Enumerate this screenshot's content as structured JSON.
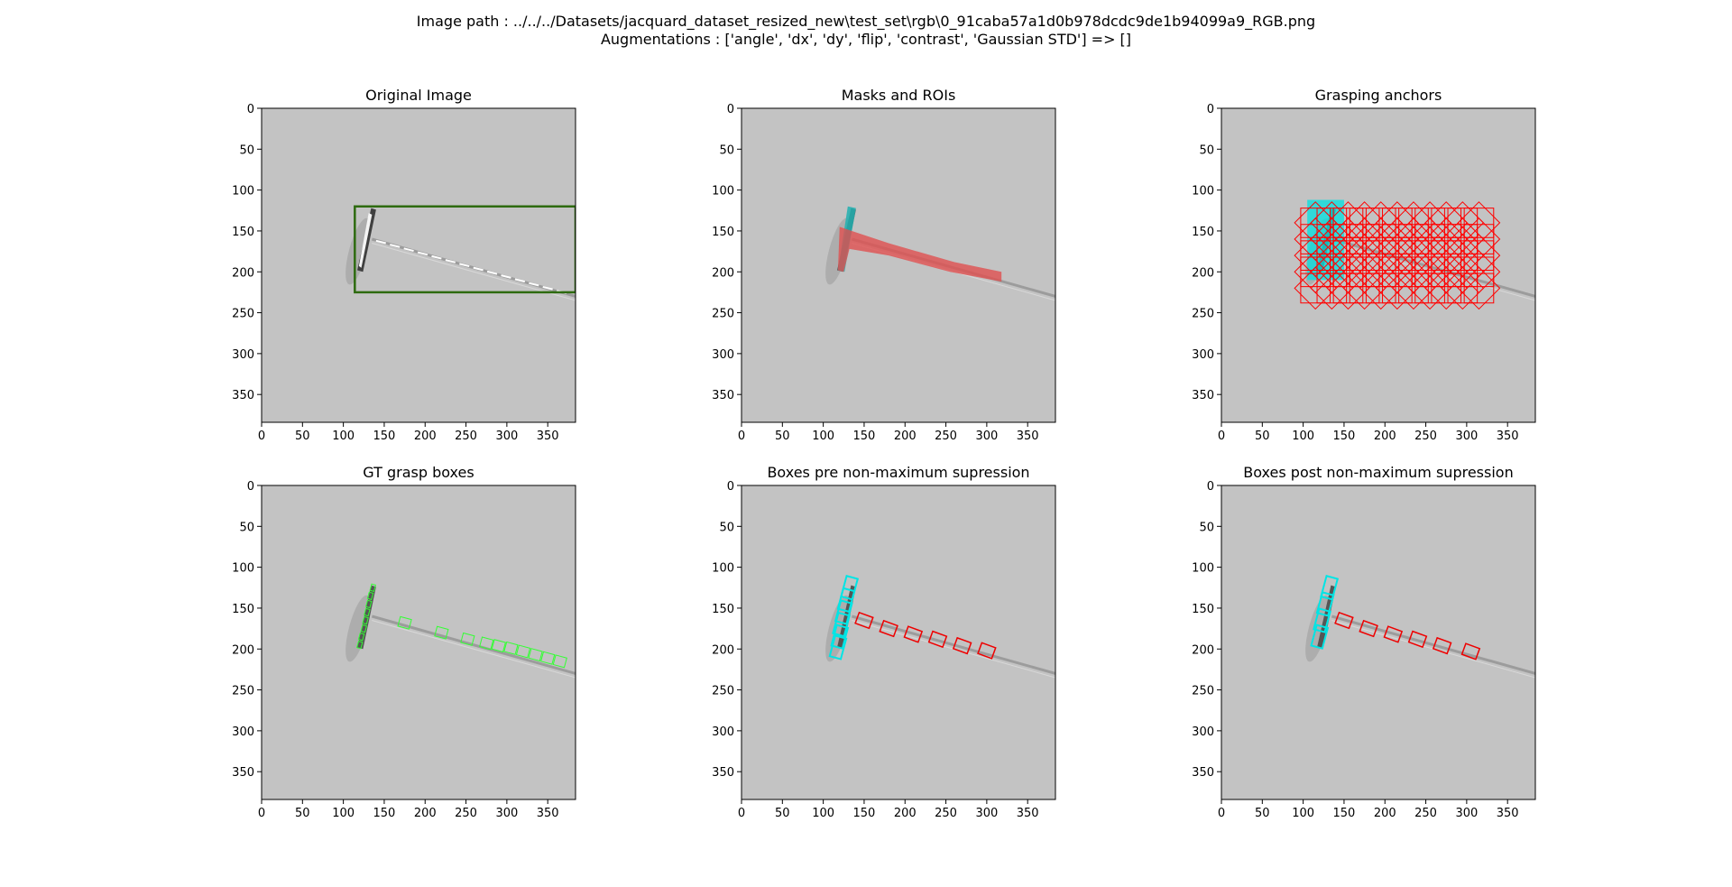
{
  "header": {
    "image_path_line": "Image path : ../../../Datasets/jacquard_dataset_resized_new\\test_set\\rgb\\0_91caba57a1d0b978dcdc9de1b94099a9_RGB.png",
    "augmentations_line": "Augmentations : ['angle', 'dx', 'dy', 'flip', 'contrast', 'Gaussian STD'] => []"
  },
  "colors": {
    "background_gray": "#c3c3c3",
    "roi_box": "#2e6b10",
    "mask_red": "#e05050",
    "mask_cyan": "#20b0b0",
    "anchor_red": "#ff0000",
    "anchor_cyan": "#00e0e0",
    "gt_green": "#33ff33",
    "pred_cyan": "#00e5e5",
    "pred_red": "#ee0000"
  },
  "axes": {
    "xlim": [
      0,
      384
    ],
    "ylim": [
      384,
      0
    ],
    "xticks": [
      0,
      50,
      100,
      150,
      200,
      250,
      300,
      350
    ],
    "yticks": [
      0,
      50,
      100,
      150,
      200,
      250,
      300,
      350
    ]
  },
  "panels": [
    {
      "title": "Original Image",
      "kind": "original"
    },
    {
      "title": "Masks and ROIs",
      "kind": "masks"
    },
    {
      "title": "Grasping anchors",
      "kind": "anchors"
    },
    {
      "title": "GT grasp boxes",
      "kind": "gt"
    },
    {
      "title": "Boxes pre non-maximum supression",
      "kind": "pre_nms"
    },
    {
      "title": "Boxes post non-maximum supression",
      "kind": "post_nms"
    }
  ],
  "chart_data": {
    "type": "image",
    "roi_box": {
      "x0": 114,
      "y0": 120,
      "x1": 384,
      "y1": 225
    },
    "anchor_grid": {
      "x_range": [
        115,
        315
      ],
      "y_range": [
        140,
        225
      ],
      "step": 20,
      "size": 36
    },
    "gt_boxes_tool_handle": [
      [
        136,
        125
      ],
      [
        133,
        135
      ],
      [
        131,
        145
      ],
      [
        129,
        155
      ],
      [
        127,
        165
      ],
      [
        125,
        175
      ],
      [
        122,
        185
      ],
      [
        120,
        195
      ]
    ],
    "gt_boxes_blade": [
      [
        175,
        168
      ],
      [
        220,
        180
      ],
      [
        252,
        188
      ],
      [
        275,
        193
      ],
      [
        290,
        196
      ],
      [
        305,
        199
      ],
      [
        320,
        203
      ],
      [
        335,
        207
      ],
      [
        350,
        211
      ],
      [
        365,
        215
      ]
    ],
    "pre_nms_cyan": [
      [
        132,
        125
      ],
      [
        128,
        140
      ],
      [
        125,
        155
      ],
      [
        122,
        170
      ],
      [
        120,
        185
      ],
      [
        118,
        198
      ]
    ],
    "pre_nms_red": [
      [
        150,
        165
      ],
      [
        180,
        175
      ],
      [
        210,
        182
      ],
      [
        240,
        188
      ],
      [
        270,
        196
      ],
      [
        300,
        202
      ]
    ],
    "post_nms_cyan": [
      [
        132,
        125
      ],
      [
        127,
        145
      ],
      [
        123,
        165
      ],
      [
        120,
        185
      ]
    ],
    "post_nms_red": [
      [
        150,
        165
      ],
      [
        180,
        175
      ],
      [
        210,
        182
      ],
      [
        240,
        188
      ],
      [
        270,
        196
      ],
      [
        305,
        203
      ]
    ]
  }
}
